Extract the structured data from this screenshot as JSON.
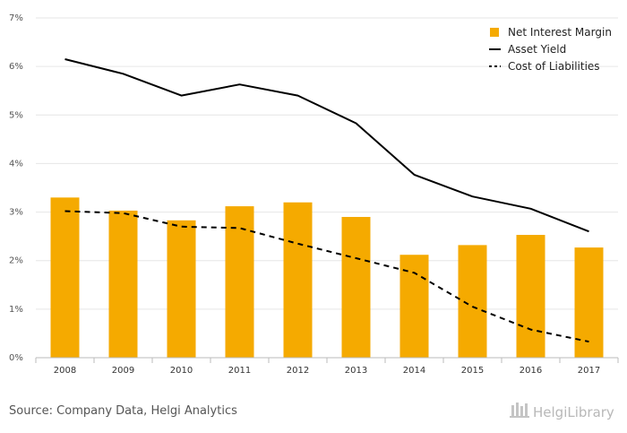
{
  "chart_data": {
    "type": "bar",
    "categories": [
      "2008",
      "2009",
      "2010",
      "2011",
      "2012",
      "2013",
      "2014",
      "2015",
      "2016",
      "2017"
    ],
    "ylim": [
      0,
      7
    ],
    "yticks": [
      "0%",
      "1%",
      "2%",
      "3%",
      "4%",
      "5%",
      "6%",
      "7%"
    ],
    "grid": true,
    "legend_position": "top-right",
    "series": [
      {
        "name": "Net Interest Margin",
        "kind": "bar",
        "color": "#F5AA00",
        "values": [
          3.3,
          3.03,
          2.83,
          3.12,
          3.2,
          2.9,
          2.12,
          2.32,
          2.53,
          2.27
        ]
      },
      {
        "name": "Asset Yield",
        "kind": "line",
        "style": "solid",
        "color": "#000000",
        "values": [
          6.15,
          5.85,
          5.4,
          5.63,
          5.4,
          4.83,
          3.77,
          3.32,
          3.07,
          2.6
        ]
      },
      {
        "name": "Cost of Liabilities",
        "kind": "line",
        "style": "dashed",
        "color": "#000000",
        "values": [
          3.02,
          2.98,
          2.7,
          2.67,
          2.35,
          2.05,
          1.75,
          1.05,
          0.58,
          0.33
        ]
      }
    ]
  },
  "footer": {
    "source": "Source: Company Data, Helgi Analytics",
    "brand": "HelgiLibrary"
  }
}
